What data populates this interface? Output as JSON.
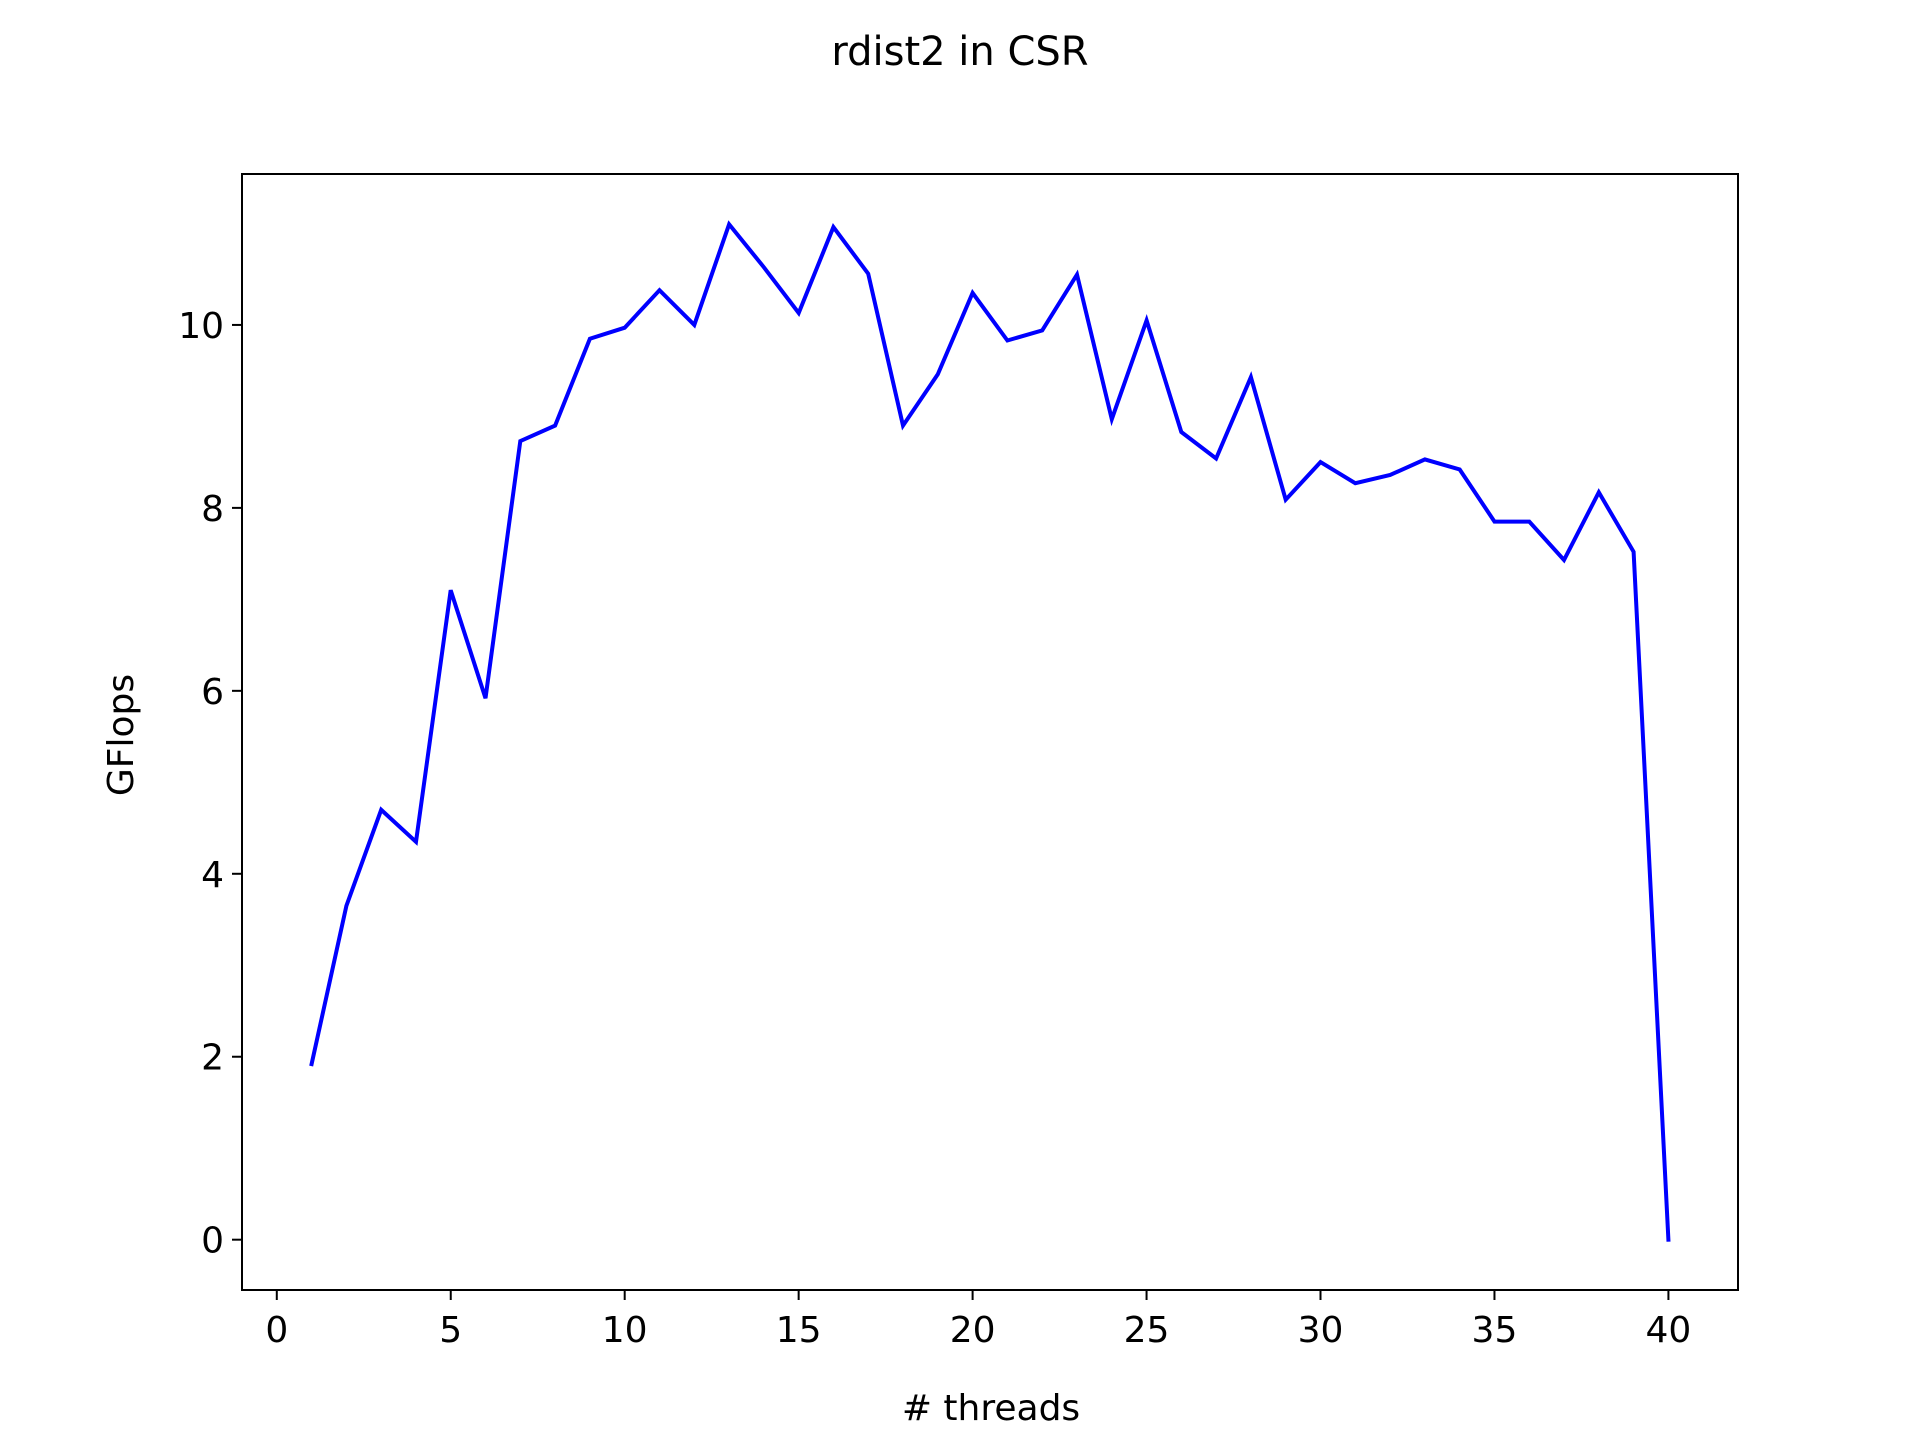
{
  "chart_data": {
    "type": "line",
    "title": "rdist2 in CSR",
    "xlabel": "# threads",
    "ylabel": "GFlops",
    "xlim": [
      -1,
      42
    ],
    "ylim": [
      -0.55,
      11.65
    ],
    "xticks": [
      0,
      5,
      10,
      15,
      20,
      25,
      30,
      35,
      40
    ],
    "yticks": [
      0,
      2,
      4,
      6,
      8,
      10
    ],
    "grid": false,
    "legend": "none",
    "series": [
      {
        "color": "#0000ff",
        "x": [
          1,
          2,
          3,
          4,
          5,
          6,
          7,
          8,
          9,
          10,
          11,
          12,
          13,
          14,
          15,
          16,
          17,
          18,
          19,
          20,
          21,
          22,
          23,
          24,
          25,
          26,
          27,
          28,
          29,
          30,
          31,
          32,
          33,
          34,
          35,
          36,
          37,
          38,
          39,
          40
        ],
        "y": [
          1.92,
          3.65,
          4.7,
          4.35,
          7.1,
          5.92,
          8.73,
          8.9,
          9.85,
          9.97,
          10.38,
          10.0,
          11.1,
          10.63,
          10.13,
          11.07,
          10.56,
          8.9,
          9.46,
          10.35,
          9.83,
          9.94,
          10.55,
          8.97,
          10.05,
          8.83,
          8.54,
          9.43,
          8.09,
          8.5,
          8.27,
          8.36,
          8.53,
          8.42,
          7.85,
          7.85,
          7.43,
          8.17,
          7.52,
          0.0
        ]
      }
    ]
  }
}
